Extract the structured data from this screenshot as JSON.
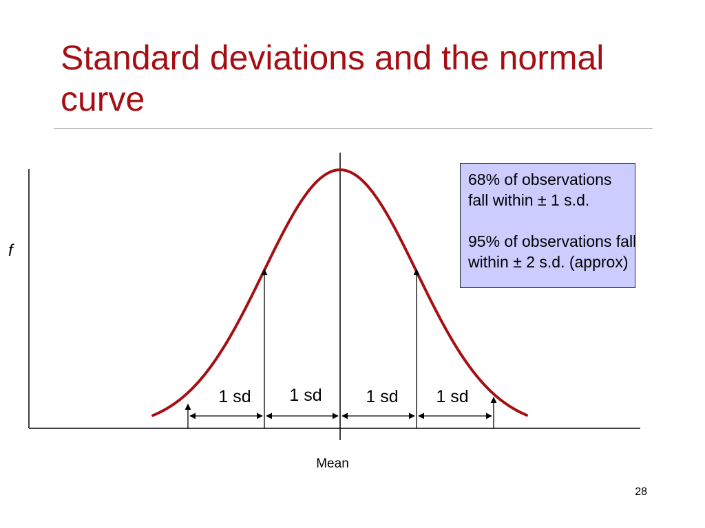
{
  "slide": {
    "title": "Standard deviations and the normal curve",
    "page_number": "28"
  },
  "diagram": {
    "y_axis_label": "f",
    "mean_label": "Mean",
    "curve_color": "#A50F14",
    "sd_labels": [
      "1 sd",
      "1 sd",
      "1 sd",
      "1 sd"
    ],
    "note_box": {
      "background": "#CCCCFF",
      "paragraph_1": [
        "68% of observations",
        "fall within ± 1 s.d."
      ],
      "paragraph_2": [
        "95% of observations fall",
        "within ± 2 s.d. (approx)"
      ]
    }
  }
}
